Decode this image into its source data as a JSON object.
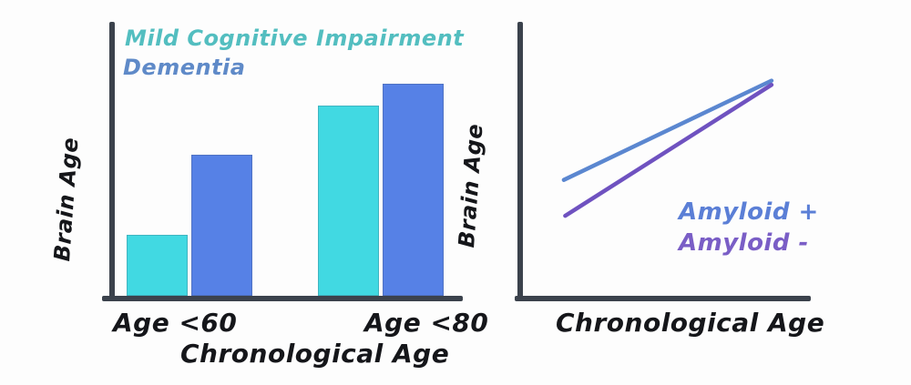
{
  "figure": {
    "description_left": "Bar chart of Brain Age vs Chronological Age groups",
    "description_right": "Line chart of Brain Age vs Chronological Age by amyloid status"
  },
  "left_chart": {
    "legend": [
      {
        "label": "Mild Cognitive Impairment",
        "color": "#53bec0"
      },
      {
        "label": "Dementia",
        "color": "#5f8ac8"
      }
    ],
    "ylabel": "Brain Age",
    "xlabel": "Chronological Age",
    "tick_labels": [
      "Age <60",
      "Age <80"
    ]
  },
  "right_chart": {
    "ylabel": "Brain Age",
    "xlabel": "Chronological Age",
    "line_labels": [
      {
        "label": "Amyloid +",
        "color": "#5b7fd6"
      },
      {
        "label": "Amyloid -",
        "color": "#7a5ec6"
      }
    ]
  },
  "colors": {
    "axis": "#3b424c",
    "mci_bar": "#41d9e2",
    "dementia_bar": "#5681e6",
    "amyloid_pos_line": "#5b87d0",
    "amyloid_neg_line": "#6f52c0",
    "tick_text": "#15161a"
  },
  "chart_data": [
    {
      "type": "bar",
      "title": "",
      "categories": [
        "Age <60",
        "Age <80"
      ],
      "series": [
        {
          "name": "Mild Cognitive Impairment",
          "color": "#41d9e2",
          "values": [
            0.22,
            0.69
          ]
        },
        {
          "name": "Dementia",
          "color": "#5681e6",
          "values": [
            0.51,
            0.77
          ]
        }
      ],
      "xlabel": "Chronological Age",
      "ylabel": "Brain Age",
      "ylim": [
        0,
        1
      ],
      "grid": false,
      "legend_position": "top-left",
      "note": "No numeric axis shown; values are fractions of plot height"
    },
    {
      "type": "line",
      "title": "",
      "series": [
        {
          "name": "Amyloid +",
          "color": "#5b87d0",
          "points": [
            [
              0.15,
              0.43
            ],
            [
              0.865,
              0.79
            ]
          ]
        },
        {
          "name": "Amyloid -",
          "color": "#6f52c0",
          "points": [
            [
              0.155,
              0.3
            ],
            [
              0.865,
              0.775
            ]
          ]
        }
      ],
      "xlabel": "Chronological Age",
      "ylabel": "Brain Age",
      "xlim": [
        0,
        1
      ],
      "ylim": [
        0,
        1
      ],
      "grid": false,
      "legend_position": "lower-right",
      "note": "No numeric axes shown; points are fractions of plot width/height"
    }
  ]
}
